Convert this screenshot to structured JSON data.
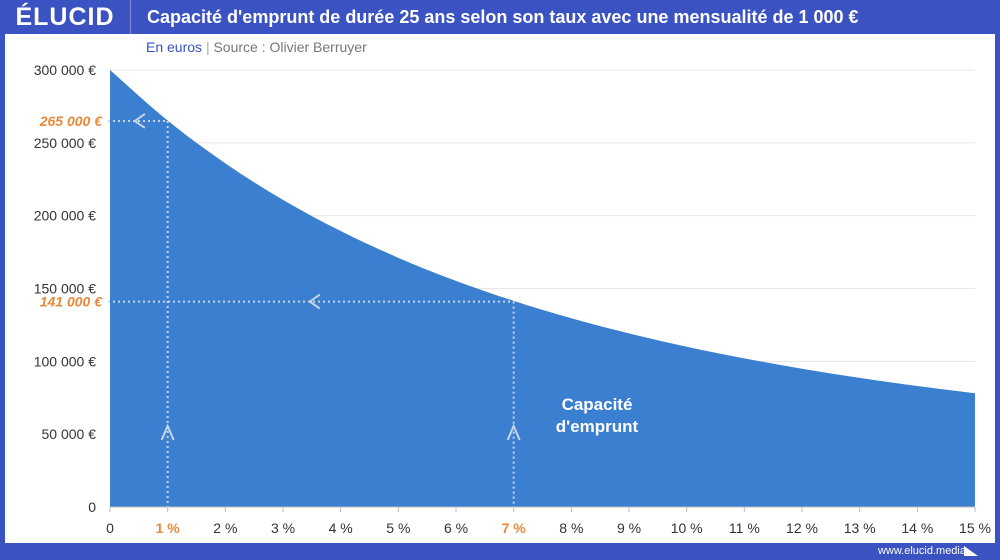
{
  "header": {
    "logo": "ÉLUCID",
    "title": "Capacité d'emprunt de durée 25 ans selon son taux avec une mensualité de 1 000 €"
  },
  "subtitle": {
    "unit": "En euros",
    "separator": "|",
    "source": "Source : Olivier Berruyer"
  },
  "footer": {
    "url": "www.elucid.media"
  },
  "colors": {
    "area": "#3a7fd0",
    "frame": "#3a52c2",
    "highlight": "#e8883a"
  },
  "chart_data": {
    "type": "area",
    "title": "Capacité d'emprunt de durée 25 ans selon son taux avec une mensualité de 1 000 €",
    "x": [
      0,
      1,
      2,
      3,
      4,
      5,
      6,
      7,
      8,
      9,
      10,
      11,
      12,
      13,
      14,
      15
    ],
    "values": [
      300000,
      265300,
      235940,
      210870,
      189450,
      171060,
      155210,
      141490,
      129570,
      119160,
      110050,
      102030,
      94950,
      88670,
      83070,
      78090
    ],
    "series_label": [
      "Capacité",
      "d'emprunt"
    ],
    "xticks": [
      "0",
      "1 %",
      "2 %",
      "3 %",
      "4 %",
      "5 %",
      "6 %",
      "7 %",
      "8 %",
      "9 %",
      "10 %",
      "11 %",
      "12 %",
      "13 %",
      "14 %",
      "15 %"
    ],
    "yticks": [
      {
        "v": 0,
        "l": "0"
      },
      {
        "v": 50000,
        "l": "50 000 €"
      },
      {
        "v": 100000,
        "l": "100 000 €"
      },
      {
        "v": 150000,
        "l": "150 000 €"
      },
      {
        "v": 200000,
        "l": "200 000 €"
      },
      {
        "v": 250000,
        "l": "250 000 €"
      },
      {
        "v": 300000,
        "l": "300 000 €"
      }
    ],
    "ylim": [
      0,
      300000
    ],
    "xlim": [
      0,
      15
    ],
    "annotations": [
      {
        "x": 1,
        "y": 265000,
        "label": "265 000 €"
      },
      {
        "x": 7,
        "y": 141000,
        "label": "141 000 €"
      }
    ]
  }
}
